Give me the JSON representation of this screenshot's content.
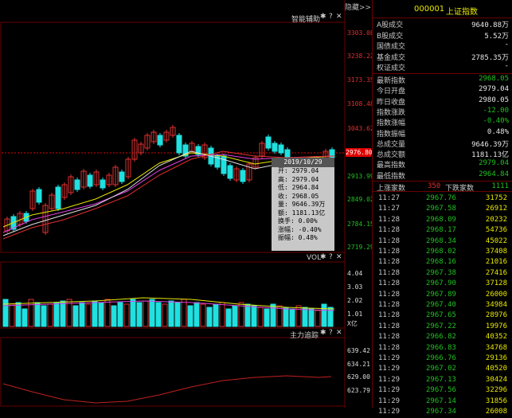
{
  "header": {
    "hide_label": "隐藏>>",
    "code": "000001",
    "name": "上证指数"
  },
  "main_panel": {
    "title": "智能辅助",
    "y_ticks": [
      "3303.08",
      "3238.22",
      "3173.35",
      "3108.48",
      "3043.62",
      "2976.80",
      "2913.99",
      "2849.02",
      "2784.15",
      "2719.29"
    ],
    "current_price_label": "2976.80"
  },
  "tooltip": {
    "date": "2019/10/29",
    "rows": [
      "开: 2979.04",
      "高: 2979.04",
      "低: 2964.84",
      "收: 2968.05",
      "量: 9646.39万",
      "额: 1181.13亿",
      "换手: 0.00%",
      "涨幅: -0.40%",
      "振幅: 0.48%"
    ]
  },
  "vol_panel": {
    "title": "VOL",
    "y_ticks": [
      "4.04",
      "3.03",
      "2.02",
      "1.01",
      "X亿"
    ]
  },
  "main_force_panel": {
    "title": "主力追踪",
    "y_ticks": [
      "639.42",
      "634.21",
      "629.00",
      "623.79"
    ]
  },
  "side": {
    "stats": [
      {
        "label": "A股成交",
        "value": "9640.88万",
        "color": "#e8e8e8"
      },
      {
        "label": "B股成交",
        "value": "5.52万",
        "color": "#e8e8e8"
      },
      {
        "label": "国债成交",
        "value": "-",
        "color": "#e8e8e8"
      },
      {
        "label": "基金成交",
        "value": "2785.35万",
        "color": "#e8e8e8"
      },
      {
        "label": "权证成交",
        "value": "-",
        "color": "#e8e8e8"
      },
      {
        "label": "最新指数",
        "value": "2968.05",
        "color": "#20c020"
      },
      {
        "label": "今日开盘",
        "value": "2979.04",
        "color": "#e8e8e8"
      },
      {
        "label": "昨日收盘",
        "value": "2980.05",
        "color": "#e8e8e8"
      },
      {
        "label": "指数涨跌",
        "value": "-12.00",
        "color": "#20c020"
      },
      {
        "label": "指数涨幅",
        "value": "-0.40%",
        "color": "#20c020"
      },
      {
        "label": "指数振幅",
        "value": "0.48%",
        "color": "#e8e8e8"
      },
      {
        "label": "总成交量",
        "value": "9646.39万",
        "color": "#e8e8e8"
      },
      {
        "label": "总成交额",
        "value": "1181.13亿",
        "color": "#e8e8e8"
      },
      {
        "label": "最高指数",
        "value": "2979.04",
        "color": "#20c020"
      },
      {
        "label": "最低指数",
        "value": "2964.84",
        "color": "#20c020"
      }
    ],
    "updown": {
      "up_label": "上涨家数",
      "up_value": "350",
      "down_label": "下跌家数",
      "down_value": "1111"
    },
    "ticks": [
      {
        "t": "11:27",
        "p": "2967.76",
        "v": "31752"
      },
      {
        "t": "11:27",
        "p": "2967.58",
        "v": "26912"
      },
      {
        "t": "11:28",
        "p": "2968.09",
        "v": "20232"
      },
      {
        "t": "11:28",
        "p": "2968.17",
        "v": "54736"
      },
      {
        "t": "11:28",
        "p": "2968.34",
        "v": "45022"
      },
      {
        "t": "11:28",
        "p": "2968.02",
        "v": "37408"
      },
      {
        "t": "11:28",
        "p": "2968.16",
        "v": "21016"
      },
      {
        "t": "11:28",
        "p": "2967.38",
        "v": "27416"
      },
      {
        "t": "11:28",
        "p": "2967.90",
        "v": "37128"
      },
      {
        "t": "11:28",
        "p": "2967.89",
        "v": "26000"
      },
      {
        "t": "11:28",
        "p": "2967.40",
        "v": "34984"
      },
      {
        "t": "11:28",
        "p": "2967.65",
        "v": "28976"
      },
      {
        "t": "11:28",
        "p": "2967.22",
        "v": "19976"
      },
      {
        "t": "11:28",
        "p": "2966.82",
        "v": "40352"
      },
      {
        "t": "11:28",
        "p": "2966.83",
        "v": "34768"
      },
      {
        "t": "11:29",
        "p": "2966.76",
        "v": "29136"
      },
      {
        "t": "11:29",
        "p": "2967.02",
        "v": "40520"
      },
      {
        "t": "11:29",
        "p": "2967.13",
        "v": "30424"
      },
      {
        "t": "11:29",
        "p": "2967.56",
        "v": "32296"
      },
      {
        "t": "11:29",
        "p": "2967.14",
        "v": "31856"
      },
      {
        "t": "11:29",
        "p": "2967.34",
        "v": "26008"
      }
    ]
  },
  "colors": {
    "up": "#e03030",
    "down": "#20e0e0",
    "ma5": "#e0e0e0",
    "ma10": "#e8e800",
    "ma20": "#e040e0",
    "ma30": "#e03030",
    "accent": "#e8e800"
  }
}
